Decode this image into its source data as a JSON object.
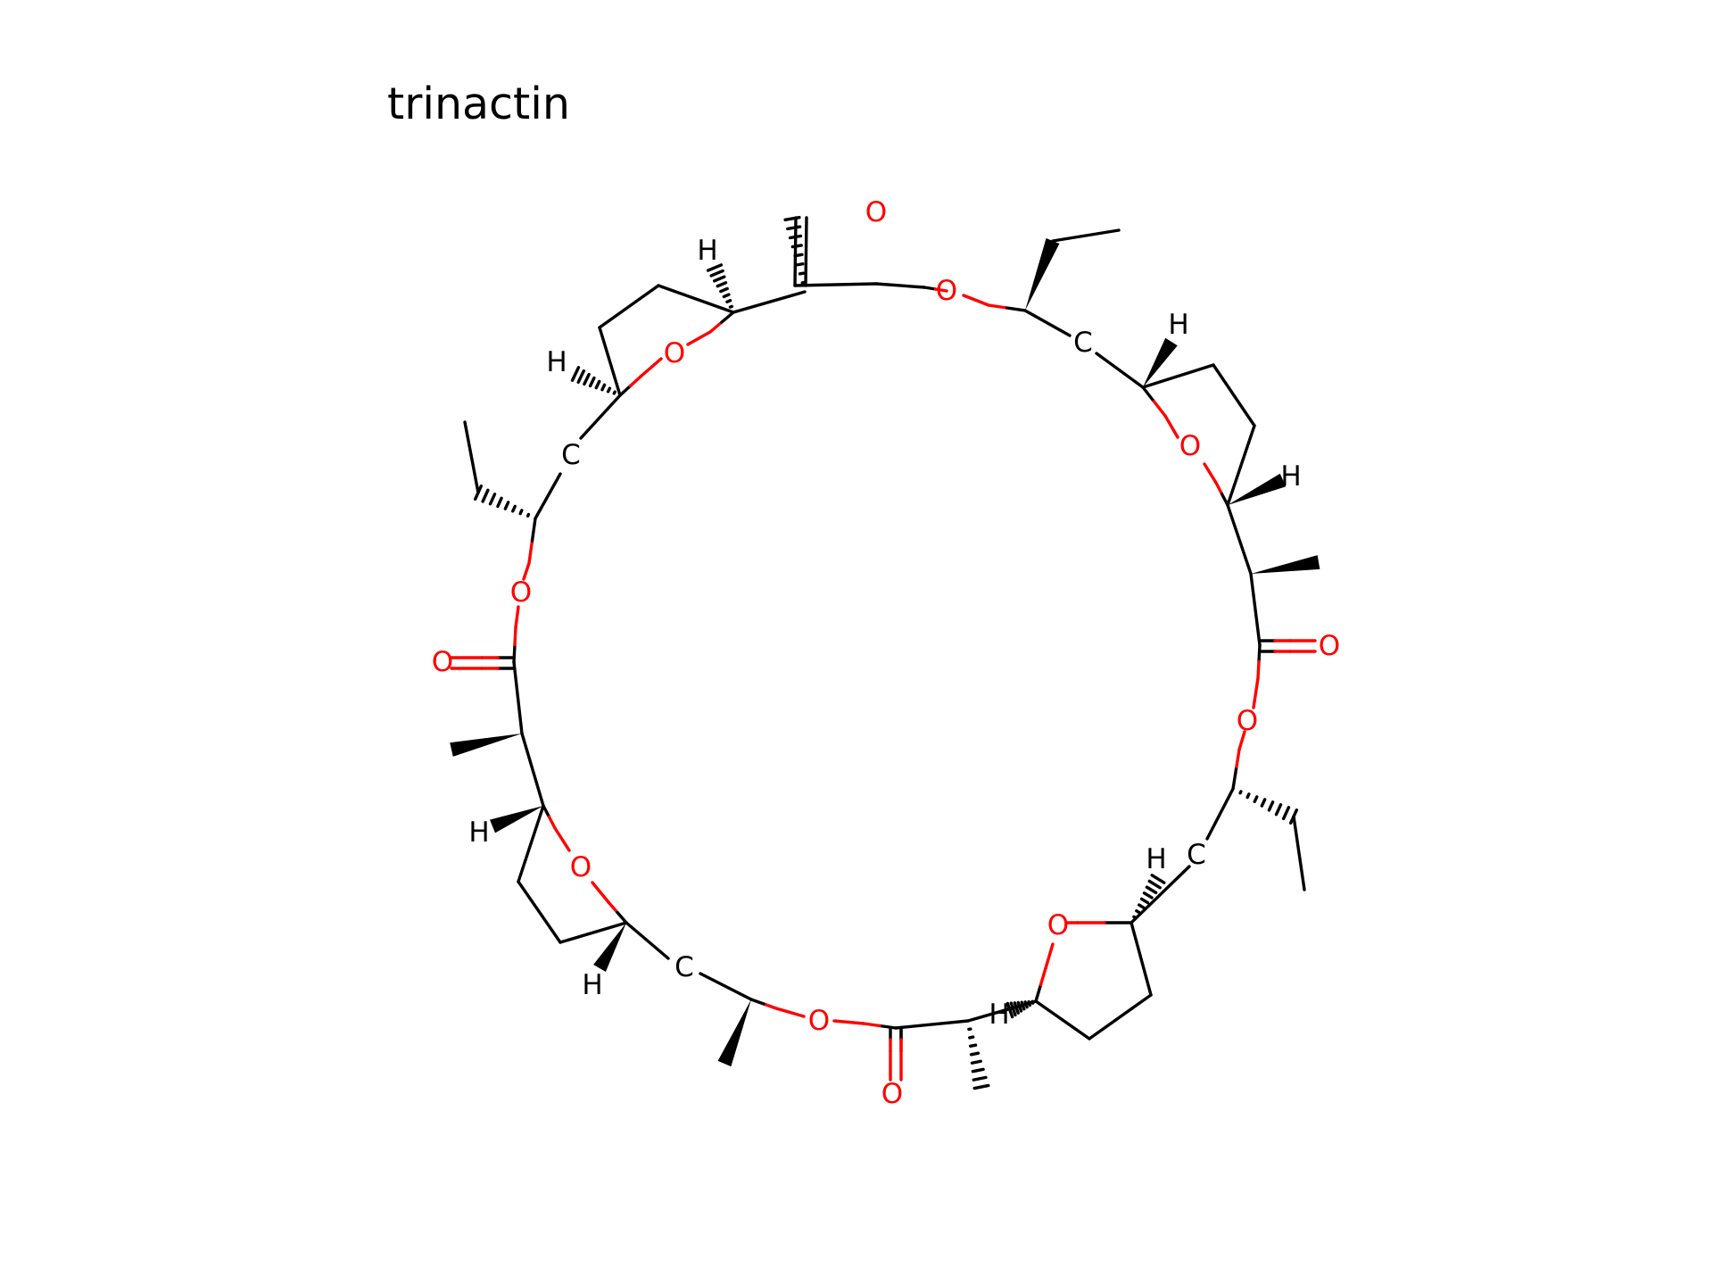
{
  "title": "trinactin",
  "colors": {
    "carbon": "#000000",
    "oxygen": "#ff0000",
    "background": "#ffffff"
  },
  "atoms": [
    {
      "id": "O1",
      "label": "O",
      "element": "O"
    },
    {
      "id": "O2",
      "label": "O",
      "element": "O"
    },
    {
      "id": "O3",
      "label": "O",
      "element": "O"
    },
    {
      "id": "O4",
      "label": "O",
      "element": "O"
    },
    {
      "id": "O5",
      "label": "O",
      "element": "O"
    },
    {
      "id": "O6",
      "label": "O",
      "element": "O"
    },
    {
      "id": "O7",
      "label": "O",
      "element": "O"
    },
    {
      "id": "O8",
      "label": "O",
      "element": "O"
    },
    {
      "id": "O9",
      "label": "O",
      "element": "O"
    },
    {
      "id": "O10",
      "label": "O",
      "element": "O"
    },
    {
      "id": "O11",
      "label": "O",
      "element": "O"
    },
    {
      "id": "O12",
      "label": "O",
      "element": "O"
    },
    {
      "id": "C1",
      "label": "C",
      "element": "C"
    },
    {
      "id": "C2",
      "label": "C",
      "element": "C"
    },
    {
      "id": "C3",
      "label": "C",
      "element": "C"
    },
    {
      "id": "C4",
      "label": "C",
      "element": "C"
    },
    {
      "id": "H1",
      "label": "H",
      "element": "H"
    },
    {
      "id": "H2",
      "label": "H",
      "element": "H"
    },
    {
      "id": "H3",
      "label": "H",
      "element": "H"
    },
    {
      "id": "H4",
      "label": "H",
      "element": "H"
    },
    {
      "id": "H5",
      "label": "H",
      "element": "H"
    },
    {
      "id": "H6",
      "label": "H",
      "element": "H"
    },
    {
      "id": "H7",
      "label": "H",
      "element": "H"
    },
    {
      "id": "H8",
      "label": "H",
      "element": "H"
    }
  ]
}
